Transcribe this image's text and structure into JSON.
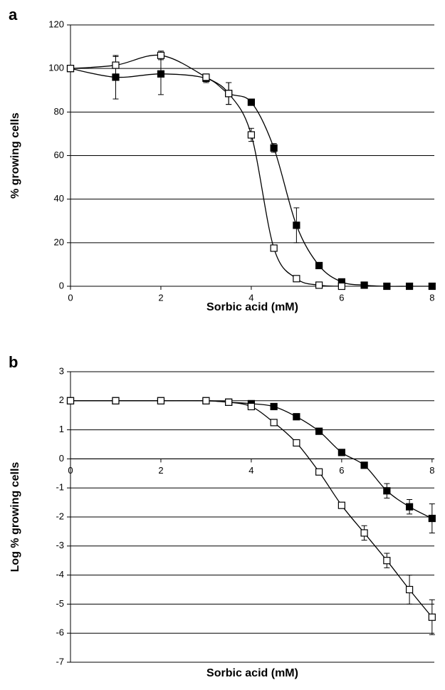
{
  "chart_data": [
    {
      "type": "line",
      "label": "a",
      "xlabel": "Sorbic acid (mM)",
      "ylabel": "% growing cells",
      "x": [
        0,
        1,
        2,
        3,
        3.5,
        4,
        4.5,
        5,
        5.5,
        6,
        6.5,
        7,
        7.5,
        8
      ],
      "series": [
        {
          "color": "#000000",
          "marker": "filled",
          "values": [
            100,
            96,
            97.5,
            95.5,
            88.5,
            84.5,
            63.5,
            28,
            9.5,
            2,
            0.5,
            0,
            0,
            0
          ],
          "errors": [
            0,
            10,
            9.5,
            2,
            5,
            1,
            2,
            8,
            1,
            0.5,
            0,
            0,
            0,
            0
          ]
        },
        {
          "color": "#000000",
          "marker": "open",
          "values": [
            100,
            101.5,
            106,
            96,
            88.5,
            69.5,
            17.5,
            3.5,
            0.5,
            0,
            null,
            null,
            null,
            null
          ],
          "errors": [
            0,
            4,
            2,
            1,
            5,
            3,
            0,
            0,
            0,
            0,
            null,
            null,
            null,
            null
          ]
        }
      ],
      "xlim": [
        0,
        8.05
      ],
      "ylim": [
        0,
        120
      ],
      "xticks": [
        0,
        2,
        4,
        6,
        8
      ],
      "yticks": [
        0,
        20,
        40,
        60,
        80,
        100,
        120
      ],
      "grid": true,
      "xaxis_position": "bottom"
    },
    {
      "type": "line",
      "label": "b",
      "xlabel": "Sorbic acid (mM)",
      "ylabel": "Log % growing cells",
      "x": [
        0,
        1,
        2,
        3,
        3.5,
        4,
        4.5,
        5,
        5.5,
        6,
        6.5,
        7,
        7.5,
        8
      ],
      "series": [
        {
          "color": "#000000",
          "marker": "filled",
          "values": [
            2,
            2,
            2,
            2,
            1.95,
            1.9,
            1.8,
            1.45,
            0.95,
            0.22,
            -0.22,
            -1.1,
            -1.65,
            -2.05
          ],
          "errors": [
            0,
            0,
            0,
            0,
            0,
            0,
            0,
            0,
            0,
            0.05,
            0.05,
            0.25,
            0.25,
            0.5
          ]
        },
        {
          "color": "#000000",
          "marker": "open",
          "values": [
            2,
            2,
            2,
            2,
            1.95,
            1.8,
            1.25,
            0.55,
            -0.45,
            -1.6,
            -2.55,
            -3.5,
            -4.5,
            -5.45
          ],
          "errors": [
            0,
            0,
            0,
            0,
            0,
            0,
            0,
            0,
            0,
            0,
            0.25,
            0.25,
            0.5,
            0.6
          ]
        }
      ],
      "xlim": [
        0,
        8.05
      ],
      "ylim": [
        -7,
        3
      ],
      "xticks": [
        0,
        2,
        4,
        6,
        8
      ],
      "yticks": [
        -7,
        -6,
        -5,
        -4,
        -3,
        -2,
        -1,
        0,
        1,
        2,
        3
      ],
      "grid": true,
      "xaxis_position": "zero"
    }
  ]
}
